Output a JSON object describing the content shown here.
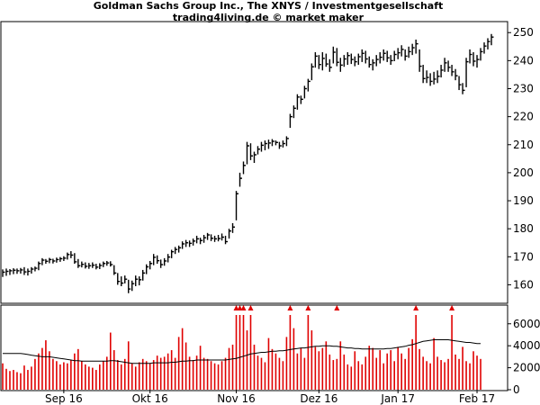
{
  "chart_data": {
    "type": "ohlc_volume",
    "title": "Goldman Sachs Group Inc., The XNYS / Investmentgesellschaft",
    "subtitle": "trading4living.de © market maker",
    "x_tick_labels": [
      "Sep 16",
      "Okt 16",
      "Nov 16",
      "Dez 16",
      "Jan 17",
      "Feb 17"
    ],
    "x_tick_bar_index": [
      17,
      41,
      65,
      88,
      110,
      132
    ],
    "price_axis": {
      "ylim": [
        155,
        252
      ],
      "ticks": [
        160,
        170,
        180,
        190,
        200,
        210,
        220,
        230,
        240,
        250
      ]
    },
    "volume_axis": {
      "ylim": [
        0,
        6800
      ],
      "ticks": [
        0,
        2000,
        4000,
        6000
      ],
      "tick_labels": [
        "0",
        "2000",
        "4000",
        "6000"
      ]
    },
    "price_bars": [
      {
        "h": 165.5,
        "l": 162.8,
        "c": 164.5
      },
      {
        "h": 165.8,
        "l": 163.2,
        "c": 164.8
      },
      {
        "h": 165.6,
        "l": 163.5,
        "c": 165.0
      },
      {
        "h": 165.9,
        "l": 163.8,
        "c": 165.2
      },
      {
        "h": 165.8,
        "l": 163.9,
        "c": 165.0
      },
      {
        "h": 166.0,
        "l": 164.0,
        "c": 165.3
      },
      {
        "h": 166.3,
        "l": 163.5,
        "c": 164.6
      },
      {
        "h": 165.8,
        "l": 163.3,
        "c": 164.8
      },
      {
        "h": 166.3,
        "l": 164.0,
        "c": 165.6
      },
      {
        "h": 166.5,
        "l": 164.8,
        "c": 165.9
      },
      {
        "h": 168.3,
        "l": 165.2,
        "c": 167.6
      },
      {
        "h": 169.5,
        "l": 167.0,
        "c": 168.8
      },
      {
        "h": 169.2,
        "l": 167.5,
        "c": 168.4
      },
      {
        "h": 169.6,
        "l": 167.7,
        "c": 169.0
      },
      {
        "h": 169.3,
        "l": 167.6,
        "c": 168.5
      },
      {
        "h": 169.7,
        "l": 167.9,
        "c": 169.0
      },
      {
        "h": 169.9,
        "l": 168.2,
        "c": 169.3
      },
      {
        "h": 170.2,
        "l": 168.5,
        "c": 169.5
      },
      {
        "h": 171.5,
        "l": 169.0,
        "c": 170.8
      },
      {
        "h": 172.0,
        "l": 169.5,
        "c": 170.6
      },
      {
        "h": 171.3,
        "l": 167.5,
        "c": 168.2
      },
      {
        "h": 169.2,
        "l": 166.0,
        "c": 166.8
      },
      {
        "h": 168.3,
        "l": 166.2,
        "c": 167.3
      },
      {
        "h": 168.0,
        "l": 165.8,
        "c": 166.6
      },
      {
        "h": 167.8,
        "l": 165.7,
        "c": 166.8
      },
      {
        "h": 168.0,
        "l": 166.0,
        "c": 167.0
      },
      {
        "h": 167.5,
        "l": 165.5,
        "c": 166.3
      },
      {
        "h": 167.7,
        "l": 165.6,
        "c": 166.9
      },
      {
        "h": 168.3,
        "l": 166.3,
        "c": 167.6
      },
      {
        "h": 168.5,
        "l": 166.8,
        "c": 167.8
      },
      {
        "h": 168.4,
        "l": 166.5,
        "c": 167.2
      },
      {
        "h": 167.0,
        "l": 163.5,
        "c": 164.2
      },
      {
        "h": 164.2,
        "l": 160.0,
        "c": 161.2
      },
      {
        "h": 163.0,
        "l": 159.5,
        "c": 160.6
      },
      {
        "h": 163.3,
        "l": 160.5,
        "c": 162.0
      },
      {
        "h": 161.8,
        "l": 157.0,
        "c": 158.5
      },
      {
        "h": 161.5,
        "l": 157.8,
        "c": 160.4
      },
      {
        "h": 163.3,
        "l": 159.5,
        "c": 162.0
      },
      {
        "h": 163.0,
        "l": 159.8,
        "c": 161.8
      },
      {
        "h": 165.3,
        "l": 161.5,
        "c": 164.2
      },
      {
        "h": 167.3,
        "l": 163.8,
        "c": 166.4
      },
      {
        "h": 168.5,
        "l": 165.5,
        "c": 167.6
      },
      {
        "h": 171.0,
        "l": 167.0,
        "c": 169.8
      },
      {
        "h": 170.5,
        "l": 167.5,
        "c": 168.6
      },
      {
        "h": 169.0,
        "l": 166.0,
        "c": 167.2
      },
      {
        "h": 169.5,
        "l": 166.8,
        "c": 168.5
      },
      {
        "h": 171.0,
        "l": 168.0,
        "c": 169.9
      },
      {
        "h": 172.5,
        "l": 169.5,
        "c": 171.8
      },
      {
        "h": 173.5,
        "l": 171.0,
        "c": 172.6
      },
      {
        "h": 174.0,
        "l": 171.5,
        "c": 173.2
      },
      {
        "h": 175.5,
        "l": 172.8,
        "c": 174.6
      },
      {
        "h": 176.0,
        "l": 173.5,
        "c": 175.0
      },
      {
        "h": 175.8,
        "l": 173.5,
        "c": 174.8
      },
      {
        "h": 176.5,
        "l": 174.0,
        "c": 175.6
      },
      {
        "h": 177.5,
        "l": 174.8,
        "c": 176.4
      },
      {
        "h": 176.8,
        "l": 174.5,
        "c": 175.8
      },
      {
        "h": 177.8,
        "l": 175.0,
        "c": 176.8
      },
      {
        "h": 178.5,
        "l": 176.0,
        "c": 177.8
      },
      {
        "h": 178.0,
        "l": 175.6,
        "c": 176.6
      },
      {
        "h": 177.5,
        "l": 175.3,
        "c": 176.4
      },
      {
        "h": 177.8,
        "l": 175.5,
        "c": 176.5
      },
      {
        "h": 178.3,
        "l": 175.8,
        "c": 177.0
      },
      {
        "h": 177.5,
        "l": 174.5,
        "c": 175.4
      },
      {
        "h": 180.0,
        "l": 176.5,
        "c": 179.2
      },
      {
        "h": 182.0,
        "l": 178.5,
        "c": 180.6
      },
      {
        "h": 193.5,
        "l": 183.0,
        "c": 192.5
      },
      {
        "h": 200.0,
        "l": 195.0,
        "c": 198.0
      },
      {
        "h": 204.0,
        "l": 199.5,
        "c": 202.6
      },
      {
        "h": 211.0,
        "l": 203.0,
        "c": 209.6
      },
      {
        "h": 210.5,
        "l": 204.5,
        "c": 206.0
      },
      {
        "h": 207.5,
        "l": 203.5,
        "c": 206.4
      },
      {
        "h": 209.5,
        "l": 206.5,
        "c": 208.4
      },
      {
        "h": 211.0,
        "l": 207.5,
        "c": 209.8
      },
      {
        "h": 211.5,
        "l": 208.0,
        "c": 210.4
      },
      {
        "h": 211.8,
        "l": 208.5,
        "c": 210.6
      },
      {
        "h": 212.0,
        "l": 209.5,
        "c": 211.2
      },
      {
        "h": 211.5,
        "l": 209.8,
        "c": 210.8
      },
      {
        "h": 211.0,
        "l": 208.5,
        "c": 209.6
      },
      {
        "h": 211.5,
        "l": 209.0,
        "c": 210.4
      },
      {
        "h": 213.0,
        "l": 209.5,
        "c": 212.2
      },
      {
        "h": 221.0,
        "l": 216.0,
        "c": 220.0
      },
      {
        "h": 224.0,
        "l": 219.5,
        "c": 223.0
      },
      {
        "h": 228.0,
        "l": 222.5,
        "c": 227.0
      },
      {
        "h": 227.5,
        "l": 224.5,
        "c": 226.2
      },
      {
        "h": 231.0,
        "l": 226.5,
        "c": 230.0
      },
      {
        "h": 233.5,
        "l": 229.0,
        "c": 232.6
      },
      {
        "h": 239.0,
        "l": 233.0,
        "c": 237.8
      },
      {
        "h": 243.0,
        "l": 237.5,
        "c": 241.6
      },
      {
        "h": 242.0,
        "l": 237.0,
        "c": 238.6
      },
      {
        "h": 243.0,
        "l": 236.5,
        "c": 240.8
      },
      {
        "h": 242.5,
        "l": 237.8,
        "c": 238.8
      },
      {
        "h": 240.5,
        "l": 236.0,
        "c": 237.6
      },
      {
        "h": 245.0,
        "l": 239.0,
        "c": 243.0
      },
      {
        "h": 244.5,
        "l": 238.0,
        "c": 239.4
      },
      {
        "h": 241.0,
        "l": 236.0,
        "c": 238.4
      },
      {
        "h": 242.0,
        "l": 237.8,
        "c": 240.6
      },
      {
        "h": 243.0,
        "l": 238.5,
        "c": 241.8
      },
      {
        "h": 242.5,
        "l": 238.8,
        "c": 240.4
      },
      {
        "h": 241.5,
        "l": 238.0,
        "c": 239.6
      },
      {
        "h": 242.5,
        "l": 238.5,
        "c": 241.4
      },
      {
        "h": 244.0,
        "l": 239.5,
        "c": 242.6
      },
      {
        "h": 243.5,
        "l": 239.0,
        "c": 240.6
      },
      {
        "h": 241.5,
        "l": 237.5,
        "c": 238.6
      },
      {
        "h": 240.5,
        "l": 236.5,
        "c": 239.2
      },
      {
        "h": 242.0,
        "l": 238.0,
        "c": 240.4
      },
      {
        "h": 243.0,
        "l": 239.0,
        "c": 241.2
      },
      {
        "h": 244.0,
        "l": 240.0,
        "c": 242.6
      },
      {
        "h": 243.5,
        "l": 239.5,
        "c": 241.0
      },
      {
        "h": 242.0,
        "l": 238.5,
        "c": 240.0
      },
      {
        "h": 243.5,
        "l": 239.8,
        "c": 242.2
      },
      {
        "h": 244.5,
        "l": 240.5,
        "c": 242.8
      },
      {
        "h": 245.5,
        "l": 241.5,
        "c": 244.0
      },
      {
        "h": 244.0,
        "l": 240.0,
        "c": 241.6
      },
      {
        "h": 245.0,
        "l": 241.0,
        "c": 243.2
      },
      {
        "h": 246.0,
        "l": 242.0,
        "c": 244.6
      },
      {
        "h": 247.5,
        "l": 242.5,
        "c": 246.0
      },
      {
        "h": 244.0,
        "l": 236.0,
        "c": 238.0
      },
      {
        "h": 238.5,
        "l": 232.0,
        "c": 233.6
      },
      {
        "h": 236.5,
        "l": 232.0,
        "c": 234.0
      },
      {
        "h": 235.5,
        "l": 231.0,
        "c": 232.6
      },
      {
        "h": 236.0,
        "l": 231.5,
        "c": 233.4
      },
      {
        "h": 236.5,
        "l": 232.0,
        "c": 234.4
      },
      {
        "h": 238.5,
        "l": 234.0,
        "c": 236.6
      },
      {
        "h": 241.0,
        "l": 236.0,
        "c": 239.2
      },
      {
        "h": 240.0,
        "l": 236.0,
        "c": 237.6
      },
      {
        "h": 238.5,
        "l": 234.5,
        "c": 236.0
      },
      {
        "h": 237.0,
        "l": 233.0,
        "c": 234.6
      },
      {
        "h": 234.5,
        "l": 229.5,
        "c": 231.4
      },
      {
        "h": 232.0,
        "l": 228.0,
        "c": 229.4
      },
      {
        "h": 241.0,
        "l": 230.5,
        "c": 239.6
      },
      {
        "h": 244.0,
        "l": 239.0,
        "c": 242.2
      },
      {
        "h": 243.0,
        "l": 238.0,
        "c": 239.8
      },
      {
        "h": 242.0,
        "l": 237.5,
        "c": 240.4
      },
      {
        "h": 244.5,
        "l": 240.0,
        "c": 243.2
      },
      {
        "h": 246.5,
        "l": 242.5,
        "c": 245.2
      },
      {
        "h": 248.0,
        "l": 244.0,
        "c": 246.8
      },
      {
        "h": 249.5,
        "l": 245.5,
        "c": 248.4
      }
    ],
    "volume": [
      2400,
      1900,
      1700,
      1800,
      1600,
      1500,
      2200,
      1800,
      2100,
      2800,
      3300,
      3800,
      4500,
      3500,
      2800,
      2600,
      2300,
      2500,
      2400,
      2700,
      3300,
      3700,
      2600,
      2300,
      2100,
      2000,
      1800,
      2300,
      2600,
      3000,
      5200,
      3600,
      2700,
      2300,
      2800,
      4400,
      2400,
      2100,
      2500,
      2800,
      2600,
      2400,
      2700,
      3100,
      2900,
      3000,
      3300,
      3600,
      2900,
      4800,
      5600,
      4300,
      3000,
      2700,
      3100,
      4000,
      2900,
      2800,
      2600,
      2400,
      2300,
      2600,
      2900,
      3800,
      4100,
      6800,
      6800,
      6800,
      5400,
      6800,
      4100,
      3100,
      2900,
      2500,
      4700,
      3700,
      3300,
      2900,
      2600,
      4800,
      6800,
      5600,
      3300,
      3800,
      2900,
      6800,
      5400,
      3900,
      3500,
      3800,
      4400,
      3200,
      2700,
      2800,
      4400,
      3200,
      2300,
      2100,
      3500,
      2600,
      2300,
      3000,
      4000,
      3800,
      2900,
      3600,
      2400,
      3300,
      3600,
      2600,
      3900,
      3300,
      2800,
      3800,
      4600,
      6800,
      3700,
      3000,
      2600,
      2400,
      4700,
      3000,
      2700,
      2500,
      2800,
      6800,
      3200,
      2800,
      3900,
      2600,
      2400,
      3500,
      3100,
      2800
    ],
    "volume_ma": [
      3300,
      3300,
      3300,
      3300,
      3300,
      3300,
      3250,
      3200,
      3150,
      3100,
      3050,
      3000,
      3000,
      3000,
      2950,
      2900,
      2850,
      2800,
      2750,
      2700,
      2650,
      2650,
      2600,
      2600,
      2600,
      2600,
      2600,
      2600,
      2600,
      2600,
      2650,
      2650,
      2600,
      2550,
      2500,
      2450,
      2400,
      2400,
      2400,
      2400,
      2400,
      2400,
      2450,
      2450,
      2450,
      2450,
      2450,
      2500,
      2500,
      2550,
      2600,
      2600,
      2650,
      2650,
      2700,
      2700,
      2700,
      2700,
      2700,
      2700,
      2700,
      2700,
      2700,
      2750,
      2800,
      2850,
      2950,
      3050,
      3150,
      3250,
      3300,
      3350,
      3400,
      3400,
      3450,
      3500,
      3500,
      3550,
      3550,
      3600,
      3650,
      3700,
      3750,
      3800,
      3800,
      3850,
      3900,
      3950,
      3950,
      4000,
      4000,
      4000,
      3950,
      3950,
      3900,
      3850,
      3800,
      3800,
      3750,
      3750,
      3700,
      3700,
      3700,
      3700,
      3700,
      3700,
      3700,
      3750,
      3750,
      3800,
      3850,
      3900,
      3950,
      4050,
      4100,
      4200,
      4300,
      4400,
      4450,
      4500,
      4550,
      4550,
      4550,
      4550,
      4550,
      4500,
      4450,
      4400,
      4350,
      4300,
      4300,
      4250,
      4200,
      4200
    ],
    "volume_arrows_at_bar": [
      65,
      66,
      67,
      69,
      80,
      85,
      93,
      115,
      125
    ]
  },
  "colors": {
    "price_bar": "#000000",
    "volume_bar": "#e00000",
    "volume_arrow": "#e00000",
    "volume_ma_line": "#000000",
    "panel_border": "#000000",
    "background": "#ffffff"
  }
}
